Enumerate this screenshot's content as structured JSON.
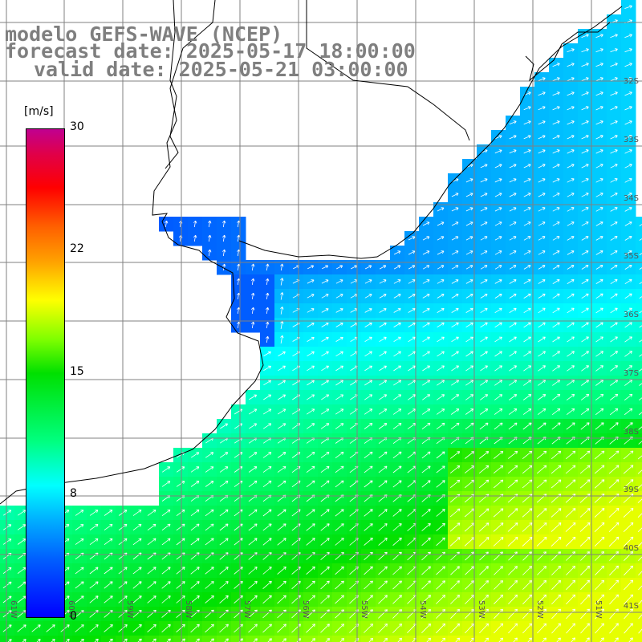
{
  "title_lines": {
    "line1": "modelo GEFS-WAVE (NCEP)",
    "line2": "forecast date: 2025-05-17 18:00:00",
    "line3": "valid date: 2025-05-21 03:00:00"
  },
  "colorbar": {
    "unit": "[m/s]",
    "ticks": [
      "30",
      "22",
      "15",
      "8",
      "0"
    ],
    "tick_values": [
      30,
      22,
      15,
      8,
      0
    ],
    "max": 30
  },
  "lat_labels": [
    "32S",
    "33S",
    "34S",
    "35S",
    "36S",
    "37S",
    "38S",
    "39S",
    "40S",
    "41S"
  ],
  "lon_labels": [
    "61W",
    "60W",
    "59W",
    "58W",
    "57W",
    "56W",
    "55W",
    "54W",
    "53W",
    "52W",
    "51W"
  ],
  "colors": {
    "land": "#ffffff",
    "grid": "#808080",
    "coast": "#000000",
    "arrow": "#ffffff"
  }
}
